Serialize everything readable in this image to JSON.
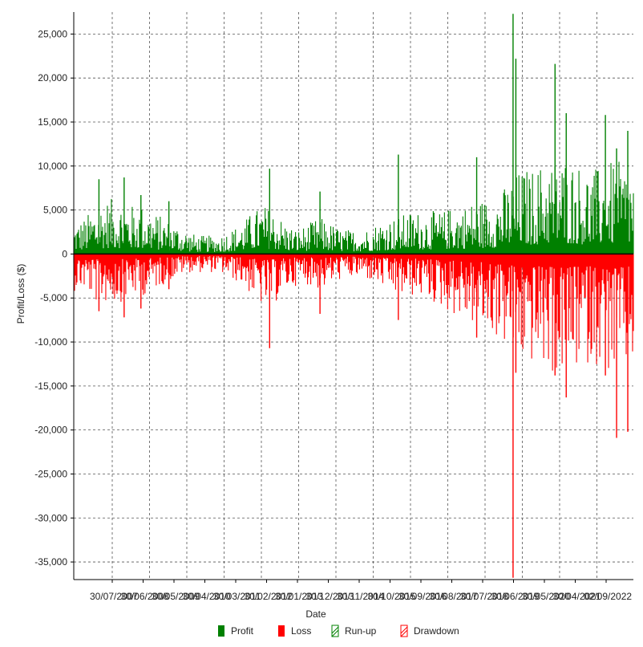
{
  "chart_data": {
    "type": "bar",
    "title": "",
    "xlabel": "Date",
    "ylabel": "Profit/Loss ($)",
    "ylim": [
      -37000,
      27500
    ],
    "y_ticks": [
      25000,
      20000,
      15000,
      10000,
      5000,
      0,
      -5000,
      -10000,
      -15000,
      -20000,
      -25000,
      -30000,
      -35000
    ],
    "y_tick_labels": [
      "25,000",
      "20,000",
      "15,000",
      "10,000",
      "5,000",
      "0",
      "-5,000",
      "-10,000",
      "-15,000",
      "-20,000",
      "-25,000",
      "-30,000",
      "-35,000"
    ],
    "x_tick_labels": [
      "30/07/2007",
      "30/06/2008",
      "30/05/2009",
      "30/04/2010",
      "30/03/2011",
      "30/02/2012",
      "30/01/2013",
      "30/12/2013",
      "30/11/2014",
      "30/10/2015",
      "30/09/2016",
      "30/08/2017",
      "30/07/2018",
      "30/06/2019",
      "30/05/2020",
      "30/04/2021",
      "02/09/2022"
    ],
    "grid": true,
    "legend_position": "bottom",
    "legend": [
      {
        "name": "Profit",
        "color": "#008000",
        "style": "solid"
      },
      {
        "name": "Loss",
        "color": "#ff0000",
        "style": "solid"
      },
      {
        "name": "Run-up",
        "color": "#008000",
        "style": "hatched"
      },
      {
        "name": "Drawdown",
        "color": "#ff0000",
        "style": "hatched"
      }
    ],
    "colors": {
      "profit": "#008000",
      "loss": "#ff0000"
    },
    "n_bars": 700,
    "envelope": {
      "x": [
        0,
        0.02,
        0.04,
        0.06,
        0.08,
        0.1,
        0.12,
        0.14,
        0.16,
        0.18,
        0.2,
        0.22,
        0.24,
        0.26,
        0.28,
        0.3,
        0.32,
        0.34,
        0.36,
        0.38,
        0.4,
        0.42,
        0.44,
        0.46,
        0.48,
        0.5,
        0.52,
        0.54,
        0.56,
        0.58,
        0.6,
        0.62,
        0.64,
        0.66,
        0.68,
        0.7,
        0.72,
        0.74,
        0.76,
        0.78,
        0.8,
        0.82,
        0.84,
        0.86,
        0.88,
        0.9,
        0.92,
        0.94,
        0.96,
        0.98,
        1.0
      ],
      "profit_typical": [
        2500,
        3000,
        4000,
        4500,
        4500,
        4000,
        4000,
        3500,
        3000,
        2500,
        2000,
        1500,
        1500,
        1500,
        2000,
        2500,
        3500,
        4000,
        3500,
        2500,
        2000,
        2500,
        3000,
        2500,
        2000,
        2000,
        2000,
        2500,
        3000,
        3000,
        3500,
        3500,
        3500,
        3500,
        4000,
        4000,
        4500,
        4500,
        5000,
        6000,
        7000,
        7000,
        7500,
        8000,
        8000,
        7500,
        7000,
        7000,
        7500,
        7500,
        7000
      ],
      "loss_typical": [
        -3000,
        -3000,
        -4000,
        -4000,
        -4000,
        -3500,
        -3500,
        -3000,
        -2500,
        -2000,
        -1500,
        -1500,
        -1500,
        -1500,
        -2000,
        -2500,
        -3500,
        -4500,
        -4000,
        -3000,
        -2500,
        -2500,
        -3000,
        -2500,
        -2000,
        -2000,
        -2000,
        -2500,
        -3000,
        -3500,
        -3500,
        -3500,
        -4000,
        -4500,
        -5000,
        -5500,
        -6000,
        -6500,
        -7000,
        -8000,
        -9000,
        -9000,
        -9500,
        -10000,
        -10000,
        -9500,
        -9000,
        -9000,
        -10000,
        -10000,
        -9000
      ]
    },
    "spikes": [
      {
        "x": 0.045,
        "profit": 8500,
        "loss": -6500
      },
      {
        "x": 0.09,
        "profit": 8700,
        "loss": -7200
      },
      {
        "x": 0.12,
        "profit": 6700,
        "loss": -6200
      },
      {
        "x": 0.17,
        "profit": 6000,
        "loss": -4000
      },
      {
        "x": 0.35,
        "profit": 9700,
        "loss": -10700
      },
      {
        "x": 0.44,
        "profit": 7100,
        "loss": -6800
      },
      {
        "x": 0.58,
        "profit": 11300,
        "loss": -7500
      },
      {
        "x": 0.72,
        "profit": 11000,
        "loss": -9500
      },
      {
        "x": 0.785,
        "profit": 27300,
        "loss": -36800
      },
      {
        "x": 0.79,
        "profit": 22200,
        "loss": -13500
      },
      {
        "x": 0.86,
        "profit": 21600,
        "loss": -13800
      },
      {
        "x": 0.88,
        "profit": 16000,
        "loss": -16300
      },
      {
        "x": 0.95,
        "profit": 15800,
        "loss": -13800
      },
      {
        "x": 0.97,
        "profit": 12000,
        "loss": -20900
      },
      {
        "x": 0.99,
        "profit": 14000,
        "loss": -20200
      }
    ]
  }
}
